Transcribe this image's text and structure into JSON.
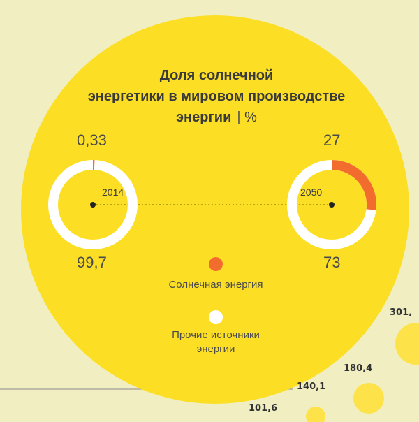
{
  "title": {
    "line1": "Доля солнечной",
    "line2": "энергетики в мировом производстве",
    "line3": "энергии",
    "unit": "%"
  },
  "chart_data": {
    "type": "pie",
    "title": "Доля солнечной энергетики в мировом производстве энергии",
    "unit": "%",
    "series": [
      {
        "name": "Солнечная энергия",
        "color": "#f26c2e"
      },
      {
        "name": "Прочие источники энергии",
        "color": "#ffffff"
      }
    ],
    "years": [
      {
        "year": "2014",
        "solar": 0.33,
        "other": 99.7,
        "solar_label": "0,33",
        "other_label": "99,7"
      },
      {
        "year": "2050",
        "solar": 27,
        "other": 73,
        "solar_label": "27",
        "other_label": "73"
      }
    ]
  },
  "legend": {
    "solar_label": "Солнечная энергия",
    "other_label_line1": "Прочие источники",
    "other_label_line2": "энергии"
  },
  "side_values": [
    "301,",
    "180,4",
    "140,1",
    "101,6"
  ],
  "colors": {
    "background": "#f1efc2",
    "circle": "#fcdf25",
    "solar": "#f26c2e",
    "other": "#ffffff",
    "bubble": "#fde24a"
  }
}
